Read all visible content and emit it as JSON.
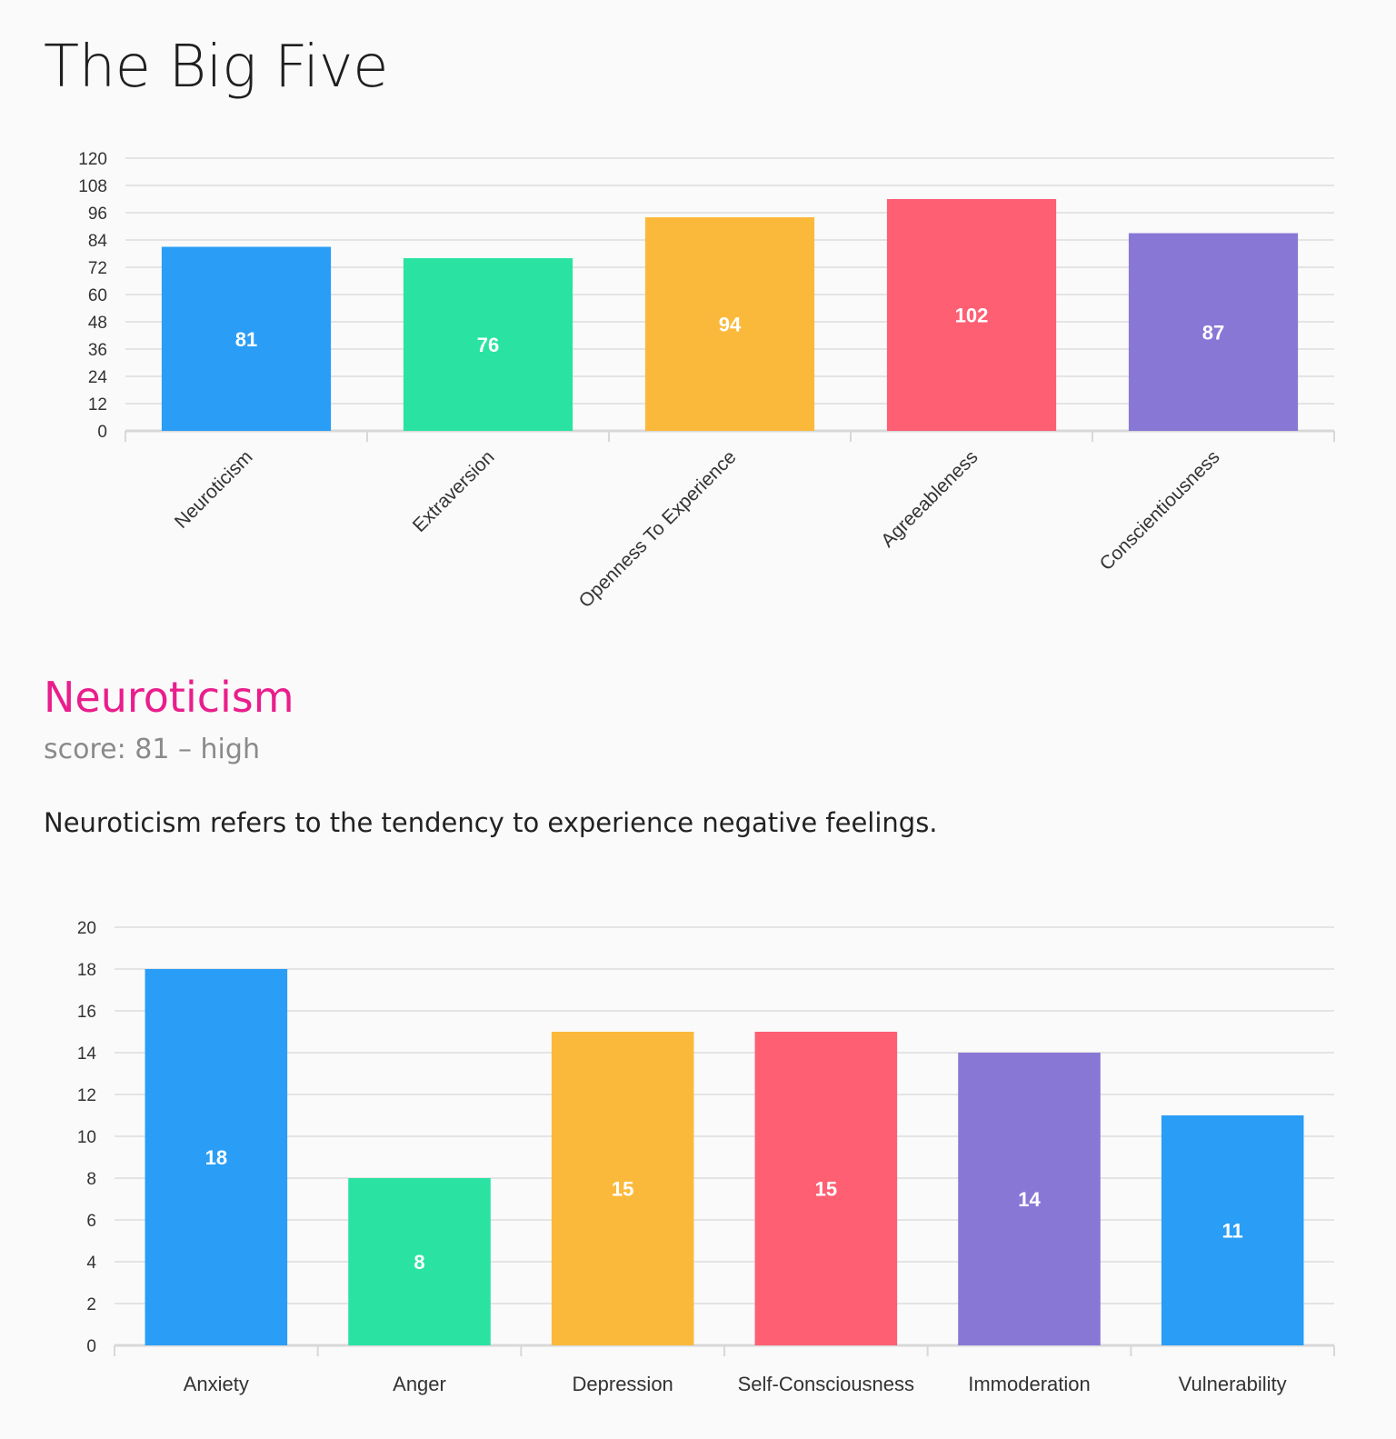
{
  "page": {
    "title": "The Big Five"
  },
  "section": {
    "title": "Neuroticism",
    "score_prefix": "score:",
    "score_value": "81",
    "score_separator": "–",
    "score_level": "high",
    "description": "Neuroticism refers to the tendency to experience negative feelings."
  },
  "colors": {
    "accent": "#e91e8c",
    "blue": "#2a9df6",
    "green": "#2ae3a3",
    "orange": "#fbb93c",
    "red": "#fe5f73",
    "purple": "#8977d6",
    "gridline": "#dddddd",
    "axis": "#d8d8d8",
    "tick_text": "#333333"
  },
  "chart_data": [
    {
      "type": "bar",
      "title": "",
      "xlabel": "",
      "ylabel": "",
      "ylim": [
        0,
        120
      ],
      "y_ticks": [
        0,
        12,
        24,
        36,
        48,
        60,
        72,
        84,
        96,
        108,
        120
      ],
      "categories": [
        "Neuroticism",
        "Extraversion",
        "Openness To Experience",
        "Agreeableness",
        "Conscientiousness"
      ],
      "values": [
        81,
        76,
        94,
        102,
        87
      ],
      "bar_colors": [
        "#2a9df6",
        "#2ae3a3",
        "#fbb93c",
        "#fe5f73",
        "#8977d6"
      ],
      "data_labels": true,
      "grid": true,
      "legend": "none",
      "x_label_rotation": "angled"
    },
    {
      "type": "bar",
      "title": "",
      "xlabel": "",
      "ylabel": "",
      "ylim": [
        0,
        20
      ],
      "y_ticks": [
        0,
        2,
        4,
        6,
        8,
        10,
        12,
        14,
        16,
        18,
        20
      ],
      "categories": [
        "Anxiety",
        "Anger",
        "Depression",
        "Self-Consciousness",
        "Immoderation",
        "Vulnerability"
      ],
      "values": [
        18,
        8,
        15,
        15,
        14,
        11
      ],
      "bar_colors": [
        "#2a9df6",
        "#2ae3a3",
        "#fbb93c",
        "#fe5f73",
        "#8977d6",
        "#2a9df6"
      ],
      "data_labels": true,
      "grid": true,
      "legend": "none",
      "x_label_rotation": "horizontal"
    }
  ]
}
